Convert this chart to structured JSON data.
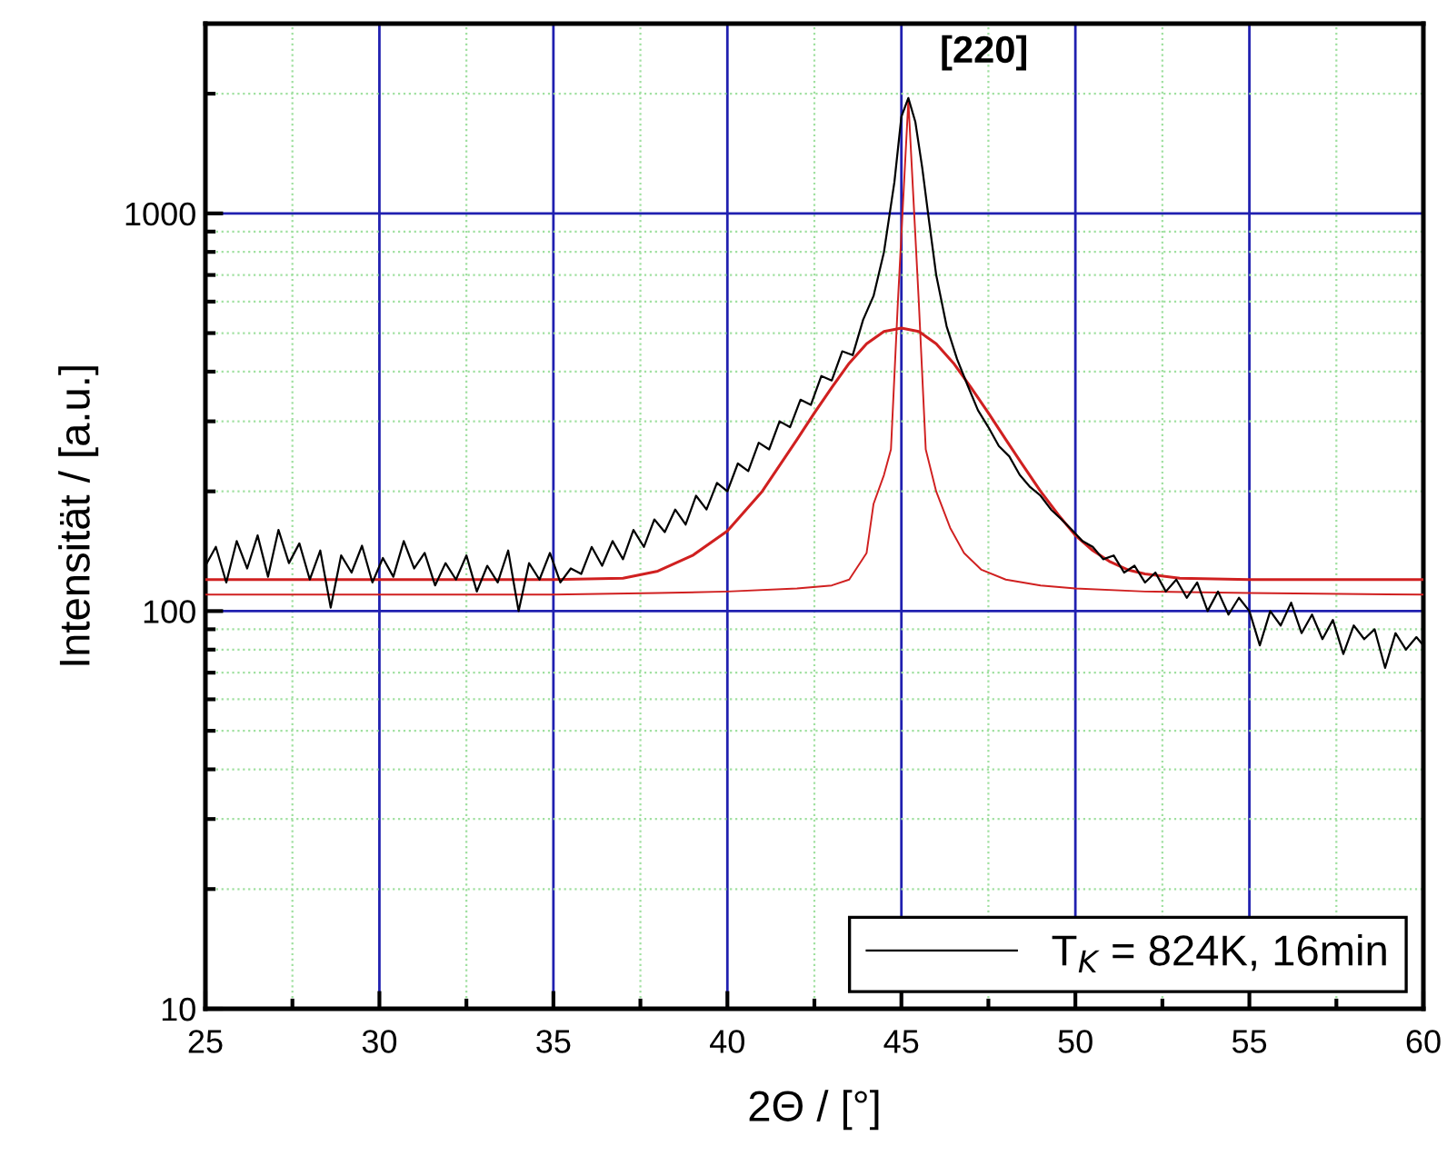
{
  "chart_data": {
    "type": "line",
    "xlabel": "2Θ / [°]",
    "ylabel": "Intensität / [a.u.]",
    "xlim": [
      25,
      60
    ],
    "xticks": [
      25,
      {
        "value": 27.5,
        "label": null
      },
      30,
      {
        "value": 32.5,
        "label": null
      },
      35,
      {
        "value": 37.5,
        "label": null
      },
      40,
      {
        "value": 42.5,
        "label": null
      },
      45,
      {
        "value": 47.5,
        "label": null
      },
      50,
      {
        "value": 52.5,
        "label": null
      },
      55,
      {
        "value": 57.5,
        "label": null
      },
      60
    ],
    "ylim": [
      10,
      3000
    ],
    "yticks": [
      10,
      {
        "value": 20,
        "label": null
      },
      {
        "value": 30,
        "label": null
      },
      {
        "value": 40,
        "label": null
      },
      {
        "value": 50,
        "label": null
      },
      {
        "value": 60,
        "label": null
      },
      {
        "value": 70,
        "label": null
      },
      {
        "value": 80,
        "label": null
      },
      {
        "value": 90,
        "label": null
      },
      100,
      {
        "value": 200,
        "label": null
      },
      {
        "value": 300,
        "label": null
      },
      {
        "value": 400,
        "label": null
      },
      {
        "value": 500,
        "label": null
      },
      {
        "value": 600,
        "label": null
      },
      {
        "value": 700,
        "label": null
      },
      {
        "value": 800,
        "label": null
      },
      {
        "value": 900,
        "label": null
      },
      1000,
      {
        "value": 2000,
        "label": null
      }
    ],
    "log": true,
    "grid": true,
    "legend": "bottom right",
    "annotations": [
      {
        "text": "[220]",
        "x": 45.2,
        "y": 1920
      }
    ],
    "series": [
      {
        "name": "T$_{K}$ = 824K, 16min",
        "color": "#000000",
        "x": [
          25.0,
          25.3,
          25.6,
          25.9,
          26.2,
          26.5,
          26.8,
          27.1,
          27.4,
          27.7,
          28.0,
          28.3,
          28.6,
          28.9,
          29.2,
          29.5,
          29.8,
          30.1,
          30.4,
          30.7,
          31.0,
          31.3,
          31.6,
          31.9,
          32.2,
          32.5,
          32.8,
          33.1,
          33.4,
          33.7,
          34.0,
          34.3,
          34.6,
          34.9,
          35.2,
          35.5,
          35.8,
          36.1,
          36.4,
          36.7,
          37.0,
          37.3,
          37.6,
          37.9,
          38.2,
          38.5,
          38.8,
          39.1,
          39.4,
          39.7,
          40.0,
          40.3,
          40.6,
          40.9,
          41.2,
          41.5,
          41.8,
          42.1,
          42.4,
          42.7,
          43.0,
          43.3,
          43.6,
          43.9,
          44.2,
          44.5,
          44.8,
          45.0,
          45.2,
          45.4,
          45.6,
          45.8,
          46.0,
          46.3,
          46.6,
          46.9,
          47.2,
          47.5,
          47.8,
          48.1,
          48.4,
          48.7,
          49.0,
          49.3,
          49.6,
          49.9,
          50.2,
          50.5,
          50.8,
          51.1,
          51.4,
          51.7,
          52.0,
          52.3,
          52.6,
          52.9,
          53.2,
          53.5,
          53.8,
          54.1,
          54.4,
          54.7,
          55.0,
          55.3,
          55.6,
          55.9,
          56.2,
          56.5,
          56.8,
          57.1,
          57.4,
          57.7,
          58.0,
          58.3,
          58.6,
          58.9,
          59.2,
          59.5,
          59.8,
          60.0
        ],
        "values": [
          130,
          145,
          118,
          150,
          128,
          155,
          122,
          160,
          132,
          148,
          120,
          142,
          102,
          138,
          125,
          146,
          118,
          136,
          122,
          150,
          128,
          140,
          116,
          132,
          120,
          138,
          112,
          130,
          118,
          142,
          100,
          132,
          120,
          140,
          118,
          128,
          124,
          145,
          130,
          150,
          135,
          160,
          145,
          170,
          158,
          180,
          165,
          195,
          180,
          210,
          200,
          235,
          225,
          265,
          255,
          300,
          290,
          340,
          330,
          390,
          380,
          450,
          440,
          540,
          620,
          800,
          1200,
          1750,
          1950,
          1700,
          1300,
          950,
          700,
          520,
          430,
          370,
          320,
          290,
          260,
          245,
          220,
          205,
          195,
          180,
          170,
          160,
          150,
          145,
          135,
          138,
          125,
          130,
          118,
          125,
          112,
          120,
          108,
          118,
          100,
          112,
          98,
          108,
          100,
          82,
          100,
          92,
          105,
          88,
          98,
          85,
          95,
          78,
          92,
          85,
          90,
          72,
          88,
          80,
          86,
          82
        ]
      },
      {
        "color": "#d02020",
        "x": [
          25,
          30,
          35,
          37,
          38,
          39,
          40,
          41,
          42,
          42.5,
          43,
          43.5,
          44,
          44.5,
          45,
          45.5,
          46,
          46.5,
          47,
          47.5,
          48,
          48.5,
          49,
          49.5,
          50,
          50.5,
          51,
          51.5,
          52,
          53,
          55,
          60
        ],
        "values": [
          120,
          120,
          120,
          121,
          126,
          138,
          159,
          200,
          270,
          315,
          365,
          420,
          470,
          505,
          515,
          505,
          470,
          420,
          365,
          315,
          270,
          232,
          200,
          175,
          155,
          142,
          133,
          127,
          124,
          121,
          120,
          120
        ]
      },
      {
        "color": "#d02020",
        "x": [
          25,
          35,
          38,
          40,
          42,
          43,
          43.5,
          44,
          44.2,
          44.5,
          44.7,
          44.9,
          45.2,
          45.5,
          45.7,
          46.0,
          46.4,
          46.8,
          47.3,
          48,
          49,
          50,
          52,
          55,
          60
        ],
        "values": [
          110,
          110,
          111,
          112,
          114,
          116,
          120,
          140,
          186,
          220,
          255,
          600,
          1920,
          600,
          255,
          200,
          162,
          140,
          127,
          120,
          116,
          114,
          112,
          111,
          110
        ]
      }
    ]
  }
}
